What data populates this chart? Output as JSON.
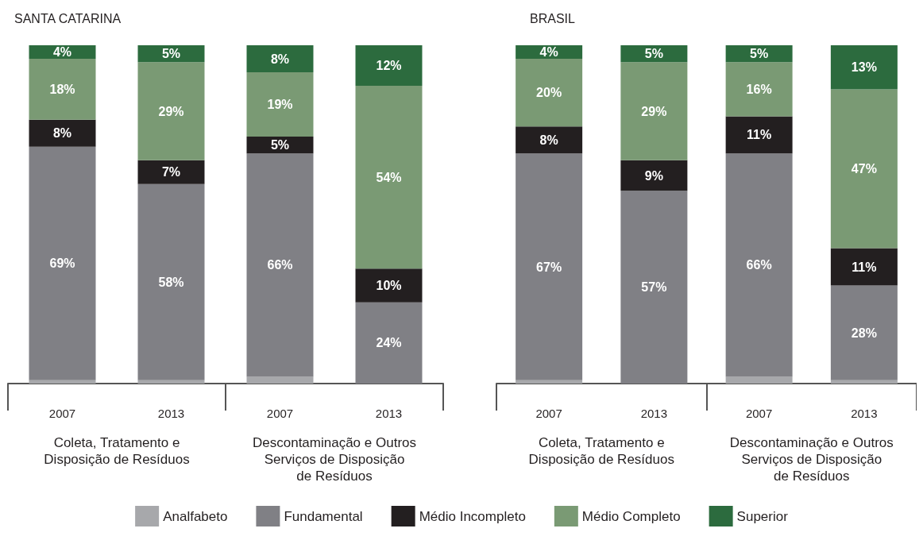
{
  "chart_data": [
    {
      "type": "bar",
      "title": "SANTA CATARINA",
      "stacked": true,
      "categories": [
        "2007",
        "2013",
        "2007",
        "2013"
      ],
      "ylim": [
        0,
        100
      ],
      "tick_labels": "x",
      "legend": "bottom",
      "annotations": [
        "Coleta, Tratamento e\nDisposição de Resíduos",
        "Descontaminação e Outros\nServiços de Disposição\nde Resíduos"
      ],
      "series": [
        {
          "name": "Analfabeto",
          "color": "#a7a8ab",
          "values": [
            1,
            1,
            2,
            0
          ],
          "value_labels": [
            null,
            null,
            null,
            null
          ]
        },
        {
          "name": "Fundamental",
          "color": "#808085",
          "values": [
            69,
            58,
            66,
            24
          ],
          "value_labels": [
            "69%",
            "58%",
            "66%",
            "24%"
          ]
        },
        {
          "name": "Médio Incompleto",
          "color": "#231f20",
          "values": [
            8,
            7,
            5,
            10
          ],
          "value_labels": [
            "8%",
            "7%",
            "5%",
            "10%"
          ]
        },
        {
          "name": "Médio Completo",
          "color": "#7a9a74",
          "values": [
            18,
            29,
            19,
            54
          ],
          "value_labels": [
            "18%",
            "29%",
            "19%",
            "54%"
          ]
        },
        {
          "name": "Superior",
          "color": "#2c6b3e",
          "values": [
            4,
            5,
            8,
            12
          ],
          "value_labels": [
            "4%",
            "5%",
            "8%",
            "12%"
          ]
        }
      ]
    },
    {
      "type": "bar",
      "title": "BRASIL",
      "stacked": true,
      "categories": [
        "2007",
        "2013",
        "2007",
        "2013"
      ],
      "ylim": [
        0,
        100
      ],
      "tick_labels": "x",
      "annotations": [
        "Coleta, Tratamento e\nDisposição de Resíduos",
        "Descontaminação e Outros\nServiços de Disposição\nde Resíduos"
      ],
      "series": [
        {
          "color": "#a7a8ab",
          "values": [
            1,
            0,
            2,
            1
          ],
          "value_labels": [
            null,
            null,
            null,
            null
          ]
        },
        {
          "color": "#808085",
          "values": [
            67,
            57,
            66,
            28
          ],
          "value_labels": [
            "67%",
            "57%",
            "66%",
            "28%"
          ]
        },
        {
          "color": "#231f20",
          "values": [
            8,
            9,
            11,
            11
          ],
          "value_labels": [
            "8%",
            "9%",
            "11%",
            "11%"
          ]
        },
        {
          "color": "#7a9a74",
          "values": [
            20,
            29,
            16,
            47
          ],
          "value_labels": [
            "20%",
            "29%",
            "16%",
            "47%"
          ]
        },
        {
          "color": "#2c6b3e",
          "values": [
            4,
            5,
            5,
            13
          ],
          "value_labels": [
            "4%",
            "5%",
            "5%",
            "13%"
          ]
        }
      ]
    }
  ]
}
